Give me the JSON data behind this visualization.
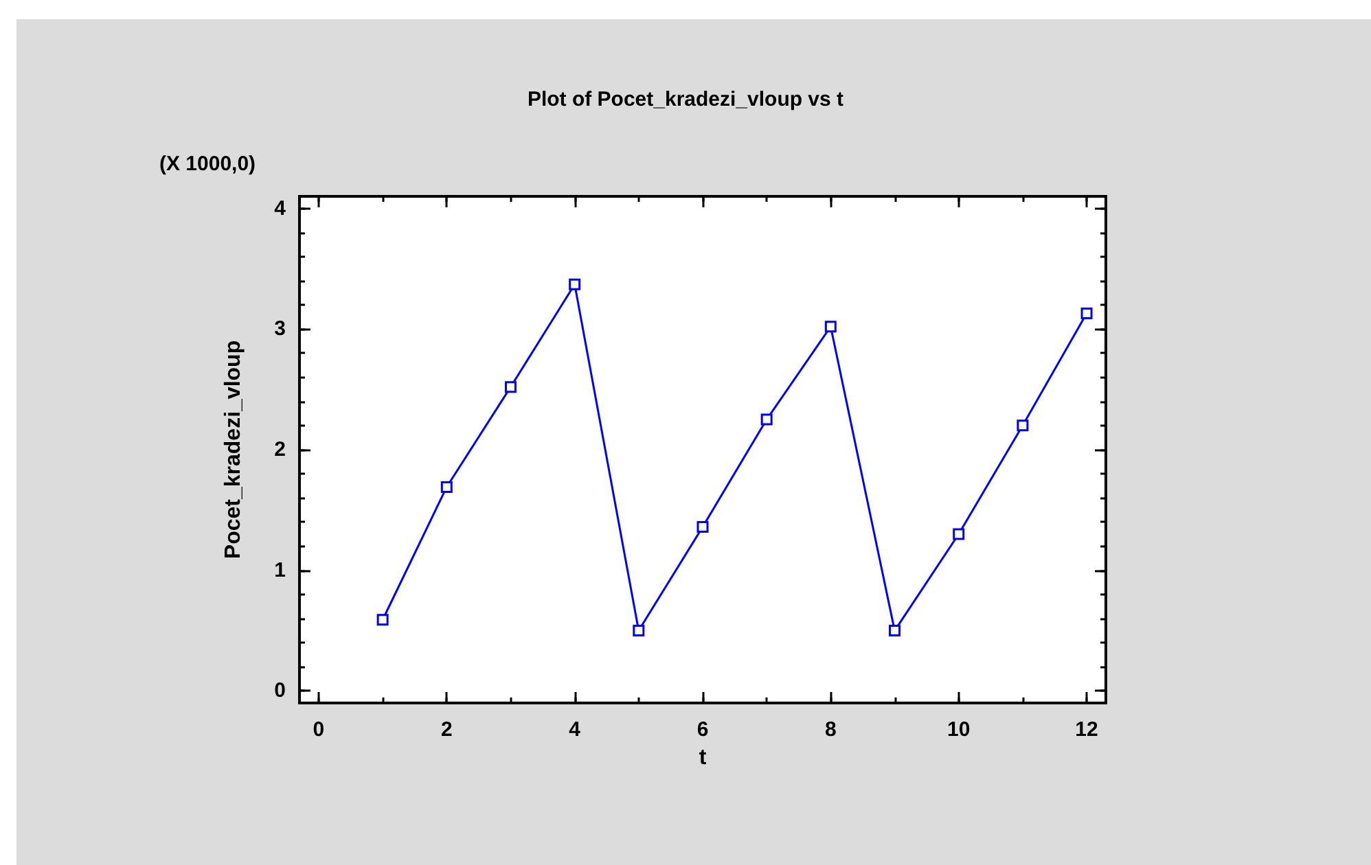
{
  "chart_data": {
    "type": "line",
    "title": "Plot of Pocet_kradezi_vloup vs t",
    "xlabel": "t",
    "ylabel": "Pocet_kradezi_vloup",
    "annotations": [
      "(X 1000,0)"
    ],
    "x": [
      1,
      2,
      3,
      4,
      5,
      6,
      7,
      8,
      9,
      10,
      11,
      12
    ],
    "series": [
      {
        "color": "#0000ff",
        "values": [
          0.59,
          1.69,
          2.52,
          3.37,
          0.5,
          1.36,
          2.25,
          3.02,
          0.5,
          1.3,
          2.2,
          3.13
        ]
      }
    ],
    "xlim": [
      -0.3,
      12.3
    ],
    "xticks": [
      0,
      2,
      4,
      6,
      8,
      10,
      12
    ],
    "ylim": [
      -0.1,
      4.1
    ],
    "yticks": [
      0,
      1,
      2,
      3,
      4
    ],
    "marker": "square",
    "line_style": "solid"
  }
}
